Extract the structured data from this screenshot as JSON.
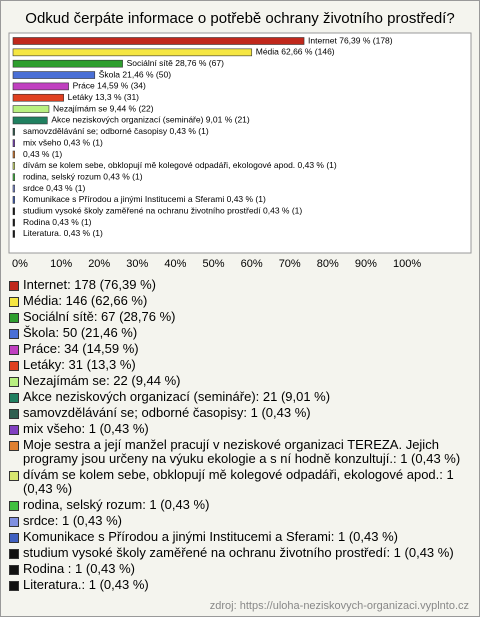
{
  "chart_data": {
    "type": "hbar",
    "title": "Odkud čerpáte informace o potřebě ochrany životního prostředí?",
    "categories": [
      "Internet",
      "Média",
      "Sociální sítě",
      "Škola",
      "Práce",
      "Letáky",
      "Nezajímám se",
      "Akce neziskových organizací (semináře)",
      "samovzdělávání se; odborné časopisy",
      "mix všeho",
      "Moje sestra a její manžel pracují v neziskové organizaci TEREZA. Jejich programy jsou určeny na výuku ekologie a s ní hodně konzultují.",
      "dívám se kolem sebe, obklopují mě kolegové odpadáři, ekologové apod.",
      "rodina, selský rozum",
      "srdce",
      "Komunikace s Přírodou a jinými Institucemi a Sferami",
      "studium vysoké školy zaměřené na ochranu životního prostředí",
      "Rodina",
      "Literatura."
    ],
    "values": [
      76.39,
      62.66,
      28.76,
      21.46,
      14.59,
      13.3,
      9.44,
      9.01,
      0.43,
      0.43,
      0.43,
      0.43,
      0.43,
      0.43,
      0.43,
      0.43,
      0.43,
      0.43
    ],
    "value_labels": [
      "Internet 76,39 % (178)",
      "Média 62,66 % (146)",
      "Sociální sítě 28,76 % (67)",
      "Škola 21,46 % (50)",
      "Práce 14,59 % (34)",
      "Letáky 13,3 % (31)",
      "Nezajímám se 9,44 % (22)",
      "Akce neziskových organizací (semináře) 9,01 % (21)",
      "samovzdělávání se; odborné časopisy 0,43 % (1)",
      "mix všeho 0,43 % (1)",
      "0,43 % (1)",
      "dívám se kolem sebe, obklopují mě kolegové odpadáři, ekologové apod. 0,43 % (1)",
      "rodina, selský rozum 0,43 % (1)",
      "srdce 0,43 % (1)",
      "Komunikace s Přírodou a jinými Institucemi a Sferami 0,43 % (1)",
      "studium vysoké školy zaměřené na ochranu životního prostředí 0,43 % (1)",
      "Rodina  0,43 % (1)",
      "Literatura. 0,43 % (1)"
    ],
    "legend_labels": [
      "Internet: 178 (76,39 %)",
      "Média: 146 (62,66 %)",
      "Sociální sítě: 67 (28,76 %)",
      "Škola: 50 (21,46 %)",
      "Práce: 34 (14,59 %)",
      "Letáky: 31 (13,3 %)",
      "Nezajímám se: 22 (9,44 %)",
      "Akce neziskových organizací (semináře): 21 (9,01 %)",
      "samovzdělávání se; odborné časopisy: 1 (0,43 %)",
      "mix všeho: 1 (0,43 %)",
      "Moje sestra a její manžel pracují v neziskové organizaci TEREZA. Jejich programy jsou určeny na výuku ekologie a s ní hodně konzultují.: 1 (0,43 %)",
      "dívám se kolem sebe, obklopují mě kolegové odpadáři, ekologové apod.: 1 (0,43 %)",
      "rodina, selský rozum: 1 (0,43 %)",
      "srdce: 1 (0,43 %)",
      "Komunikace s Přírodou a jinými Institucemi a Sferami: 1 (0,43 %)",
      "studium vysoké školy zaměřené na ochranu životního prostředí: 1 (0,43 %)",
      "Rodina : 1 (0,43 %)",
      "Literatura.: 1 (0,43 %)"
    ],
    "colors": [
      "#c0281c",
      "#f5e642",
      "#2e9e2e",
      "#4a6fd6",
      "#c040c0",
      "#e04020",
      "#b8f080",
      "#208060",
      "#306050",
      "#8040c0",
      "#e08030",
      "#d8e870",
      "#40c040",
      "#8090e0",
      "#4060c0",
      "#111111",
      "#111111",
      "#111111"
    ],
    "xlim": [
      0,
      100
    ],
    "xticks": [
      {
        "value": 0,
        "label": "0%"
      },
      {
        "value": 10,
        "label": "10%"
      },
      {
        "value": 20,
        "label": "20%"
      },
      {
        "value": 30,
        "label": "30%"
      },
      {
        "value": 40,
        "label": "40%"
      },
      {
        "value": 50,
        "label": "50%"
      },
      {
        "value": 60,
        "label": "60%"
      },
      {
        "value": 70,
        "label": "70%"
      },
      {
        "value": 80,
        "label": "80%"
      },
      {
        "value": 90,
        "label": "90%"
      },
      {
        "value": 100,
        "label": "100%"
      }
    ],
    "grid": false,
    "source": "zdroj: https://uloha-neziskovych-organizaci.vyplnto.cz"
  }
}
